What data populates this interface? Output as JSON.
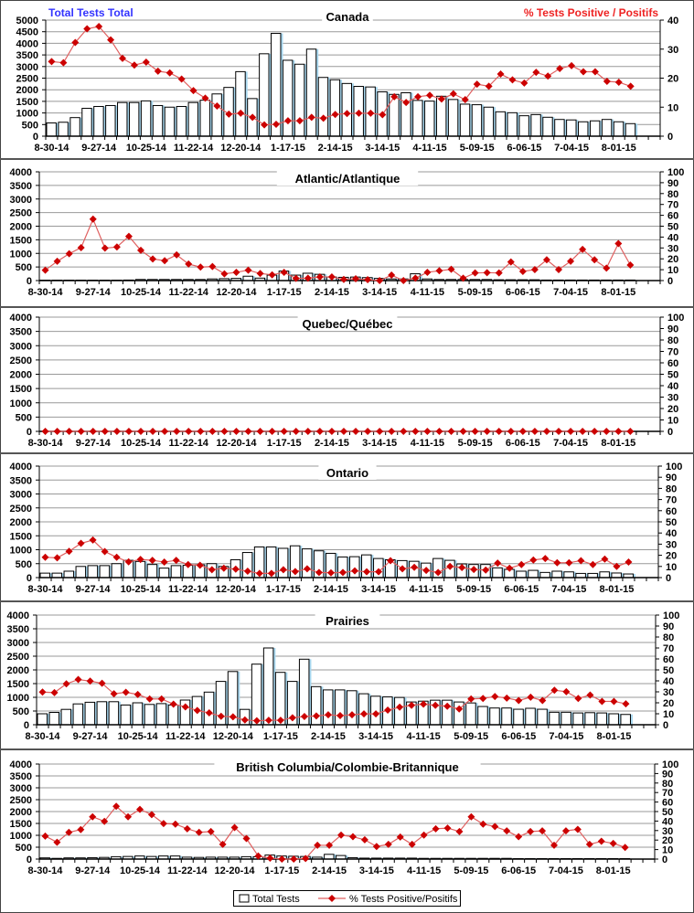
{
  "header": {
    "left_axis_title": "Total Tests Total",
    "right_axis_title": "% Tests Positive / Positifs"
  },
  "legend": {
    "tests_label": "Total Tests",
    "pct_label": "% Tests Positive/Positifs"
  },
  "colors": {
    "bars_fill": "#ffffff",
    "bars_edge": "#000000",
    "bar_shadow": "#a8d8f0",
    "line": "#e06060",
    "marker": "#cc0000",
    "left_title": "#3333ff",
    "right_title": "#ee2222"
  },
  "x_tick_labels": [
    "8-30-14",
    "9-27-14",
    "10-25-14",
    "11-22-14",
    "12-20-14",
    "1-17-15",
    "2-14-15",
    "3-14-15",
    "4-11-15",
    "5-09-15",
    "6-06-15",
    "7-04-15",
    "8-01-15"
  ],
  "chart_data": [
    {
      "type": "bar+line",
      "title": "Canada",
      "left_axis": {
        "min": 0,
        "max": 5000,
        "step": 500
      },
      "right_axis": {
        "min": 0,
        "max": 40,
        "step": 10
      },
      "grid": true,
      "series": [
        {
          "name": "Total Tests",
          "type": "bar",
          "axis": "left",
          "values": [
            570,
            600,
            800,
            1200,
            1280,
            1320,
            1450,
            1450,
            1520,
            1320,
            1250,
            1280,
            1450,
            1550,
            1820,
            2100,
            2780,
            1620,
            3550,
            4430,
            3270,
            3100,
            3750,
            2530,
            2430,
            2270,
            2145,
            2120,
            1910,
            1800,
            1870,
            1540,
            1510,
            1720,
            1580,
            1380,
            1355,
            1250,
            1050,
            1010,
            880,
            930,
            815,
            720,
            700,
            620,
            660,
            720,
            620,
            540
          ]
        },
        {
          "name": "% Tests Positive/Positifs",
          "type": "line",
          "axis": "right",
          "values": [
            25.7,
            25.3,
            32.3,
            37,
            37.8,
            33.2,
            26.8,
            24.5,
            25.5,
            22.4,
            21.8,
            19.7,
            15.7,
            13.1,
            10.4,
            7.6,
            7.9,
            6.5,
            3.9,
            4.1,
            5.3,
            5.3,
            6.5,
            6.2,
            7.5,
            7.8,
            7.9,
            7.9,
            7.4,
            13.6,
            11.6,
            13.6,
            14.1,
            12.8,
            14.6,
            12.6,
            17.9,
            17.2,
            21.4,
            19.4,
            18.3,
            22,
            20.7,
            23.3,
            24.3,
            22.2,
            22.2,
            18.9,
            18.6,
            17.2
          ]
        }
      ]
    },
    {
      "type": "bar+line",
      "title": "Atlantic/Atlantique",
      "left_axis": {
        "min": 0,
        "max": 4000,
        "step": 500
      },
      "right_axis": {
        "min": 0,
        "max": 100,
        "step": 10
      },
      "grid": true,
      "series": [
        {
          "name": "Total Tests",
          "type": "bar",
          "axis": "left",
          "values": [
            15,
            15,
            15,
            15,
            15,
            15,
            15,
            20,
            40,
            40,
            40,
            40,
            40,
            40,
            60,
            70,
            80,
            160,
            90,
            200,
            350,
            200,
            270,
            230,
            130,
            120,
            130,
            110,
            80,
            60,
            60,
            250,
            60,
            40,
            40,
            40,
            40,
            40,
            30,
            30,
            30,
            30,
            20,
            20,
            20,
            20,
            20,
            20,
            20,
            20
          ]
        },
        {
          "name": "% Tests Positive/Positifs",
          "type": "line",
          "axis": "right",
          "values": [
            9.6,
            17.7,
            24.7,
            30.3,
            56.5,
            29.8,
            30.9,
            40.7,
            27.8,
            19.9,
            18.3,
            23.6,
            15.2,
            12.4,
            12.9,
            6.2,
            7.6,
            9.6,
            6.5,
            5.3,
            7.6,
            2,
            2.2,
            3.4,
            3.4,
            1.1,
            1.7,
            0.8,
            0,
            5,
            0,
            2.2,
            7.6,
            9,
            10.4,
            2.2,
            7,
            7.3,
            7,
            17.1,
            8.4,
            10.1,
            19.1,
            10.1,
            17.7,
            28.7,
            19.1,
            11.5,
            34,
            14.3
          ]
        }
      ]
    },
    {
      "type": "bar+line",
      "title": "Quebec/Québec",
      "left_axis": {
        "min": 0,
        "max": 4000,
        "step": 500
      },
      "right_axis": {
        "min": 0,
        "max": 100,
        "step": 10
      },
      "grid": true,
      "series": [
        {
          "name": "Total Tests",
          "type": "bar",
          "axis": "left",
          "values": [
            0,
            0,
            0,
            0,
            0,
            0,
            0,
            0,
            0,
            0,
            0,
            0,
            0,
            0,
            0,
            0,
            0,
            0,
            0,
            0,
            0,
            0,
            0,
            0,
            0,
            0,
            0,
            0,
            0,
            0,
            0,
            0,
            0,
            0,
            0,
            0,
            0,
            0,
            0,
            0,
            0,
            0,
            0,
            0,
            0,
            0,
            0,
            0,
            0,
            0
          ]
        },
        {
          "name": "% Tests Positive/Positifs",
          "type": "line",
          "axis": "right",
          "values": [
            0,
            0,
            0,
            0,
            0,
            0,
            0,
            0,
            0,
            0,
            0,
            0,
            0,
            0,
            0,
            0,
            0,
            0,
            0,
            0,
            0,
            0,
            0,
            0,
            0,
            0,
            0,
            0,
            0,
            0,
            0,
            0,
            0,
            0,
            0,
            0,
            0,
            0,
            0,
            0,
            0,
            0,
            0,
            0,
            0,
            0,
            0,
            0,
            0,
            0
          ]
        }
      ]
    },
    {
      "type": "bar+line",
      "title": "Ontario",
      "left_axis": {
        "min": 0,
        "max": 4000,
        "step": 500
      },
      "right_axis": {
        "min": 0,
        "max": 100,
        "step": 10
      },
      "grid": true,
      "series": [
        {
          "name": "Total Tests",
          "type": "bar",
          "axis": "left",
          "values": [
            160,
            160,
            230,
            400,
            430,
            430,
            500,
            620,
            580,
            470,
            340,
            430,
            440,
            460,
            500,
            400,
            640,
            900,
            1100,
            1100,
            1050,
            1140,
            1030,
            960,
            870,
            740,
            750,
            815,
            685,
            640,
            610,
            585,
            520,
            685,
            620,
            490,
            470,
            470,
            350,
            295,
            230,
            260,
            185,
            230,
            205,
            150,
            150,
            205,
            165,
            130
          ]
        },
        {
          "name": "% Tests Positive/Positifs",
          "type": "line",
          "axis": "right",
          "values": [
            18.2,
            17.7,
            23.6,
            30.7,
            33.7,
            23.4,
            18.2,
            14.1,
            16.3,
            15.5,
            13.9,
            15.5,
            11.7,
            11.1,
            7.1,
            8.4,
            7.6,
            5.7,
            3.8,
            3.8,
            7.1,
            5.4,
            7.9,
            4.6,
            4.3,
            4.6,
            6,
            5.2,
            5.2,
            15.2,
            7.9,
            9.2,
            6.5,
            4.6,
            10,
            9,
            7.3,
            6.8,
            13,
            8.4,
            11.7,
            15.8,
            17.1,
            13.3,
            13.3,
            15.2,
            11.7,
            16.6,
            10,
            13.9
          ]
        }
      ]
    },
    {
      "type": "bar+line",
      "title": "Prairies",
      "left_axis": {
        "min": 0,
        "max": 4000,
        "step": 500
      },
      "right_axis": {
        "min": 0,
        "max": 100,
        "step": 10
      },
      "grid": true,
      "series": [
        {
          "name": "Total Tests",
          "type": "bar",
          "axis": "left",
          "values": [
            400,
            450,
            560,
            760,
            820,
            840,
            840,
            720,
            800,
            740,
            770,
            720,
            900,
            1030,
            1190,
            1580,
            1940,
            560,
            2210,
            2800,
            1910,
            1580,
            2390,
            1390,
            1270,
            1270,
            1240,
            1130,
            1040,
            1015,
            995,
            830,
            860,
            895,
            895,
            830,
            795,
            665,
            610,
            610,
            565,
            600,
            565,
            455,
            455,
            430,
            440,
            430,
            400,
            375
          ]
        },
        {
          "name": "% Tests Positive/Positifs",
          "type": "line",
          "axis": "right",
          "values": [
            29.8,
            29.3,
            37.3,
            41.2,
            39.8,
            37.8,
            28.2,
            29.6,
            27.6,
            23.5,
            23.5,
            18.8,
            16.3,
            13,
            10.8,
            7.7,
            7.2,
            4.4,
            3.6,
            4.1,
            4.1,
            6.4,
            7.5,
            8,
            9.1,
            8.3,
            9.1,
            9.9,
            9.9,
            13.3,
            16,
            17.7,
            18.8,
            17.7,
            16.9,
            14.4,
            23.5,
            24,
            25.7,
            24.3,
            22.1,
            25.1,
            22.1,
            31.5,
            30.1,
            24,
            27.1,
            21.3,
            21.3,
            19.1
          ]
        }
      ]
    },
    {
      "type": "bar+line",
      "title": "British Columbia/Colombie-Britannique",
      "left_axis": {
        "min": 0,
        "max": 4000,
        "step": 500
      },
      "right_axis": {
        "min": 0,
        "max": 100,
        "step": 10
      },
      "grid": true,
      "series": [
        {
          "name": "Total Tests",
          "type": "bar",
          "axis": "left",
          "values": [
            50,
            30,
            50,
            50,
            60,
            70,
            100,
            110,
            130,
            110,
            130,
            130,
            80,
            70,
            80,
            80,
            80,
            100,
            100,
            170,
            130,
            120,
            110,
            80,
            200,
            150,
            60,
            40,
            40,
            40,
            40,
            40,
            30,
            30,
            30,
            30,
            30,
            30,
            30,
            30,
            20,
            20,
            20,
            20,
            20,
            20,
            20,
            20,
            20,
            20
          ]
        },
        {
          "name": "% Tests Positive/Positifs",
          "type": "line",
          "axis": "right",
          "values": [
            24.2,
            17.7,
            28.1,
            31,
            44.5,
            39.7,
            55.5,
            44.5,
            52.3,
            46.8,
            37.4,
            36.8,
            31.9,
            28.1,
            29,
            15.5,
            33.2,
            21.6,
            3.2,
            1,
            0,
            0,
            0.6,
            14.5,
            14.5,
            25.2,
            23.5,
            20.3,
            13.2,
            15.5,
            23.2,
            15.5,
            25.2,
            31.9,
            32.6,
            29,
            44.5,
            36.8,
            34.2,
            29.7,
            23.5,
            29,
            29.7,
            14.5,
            29.7,
            31.3,
            15.5,
            18.7,
            16.5,
            12.3
          ]
        }
      ]
    }
  ]
}
